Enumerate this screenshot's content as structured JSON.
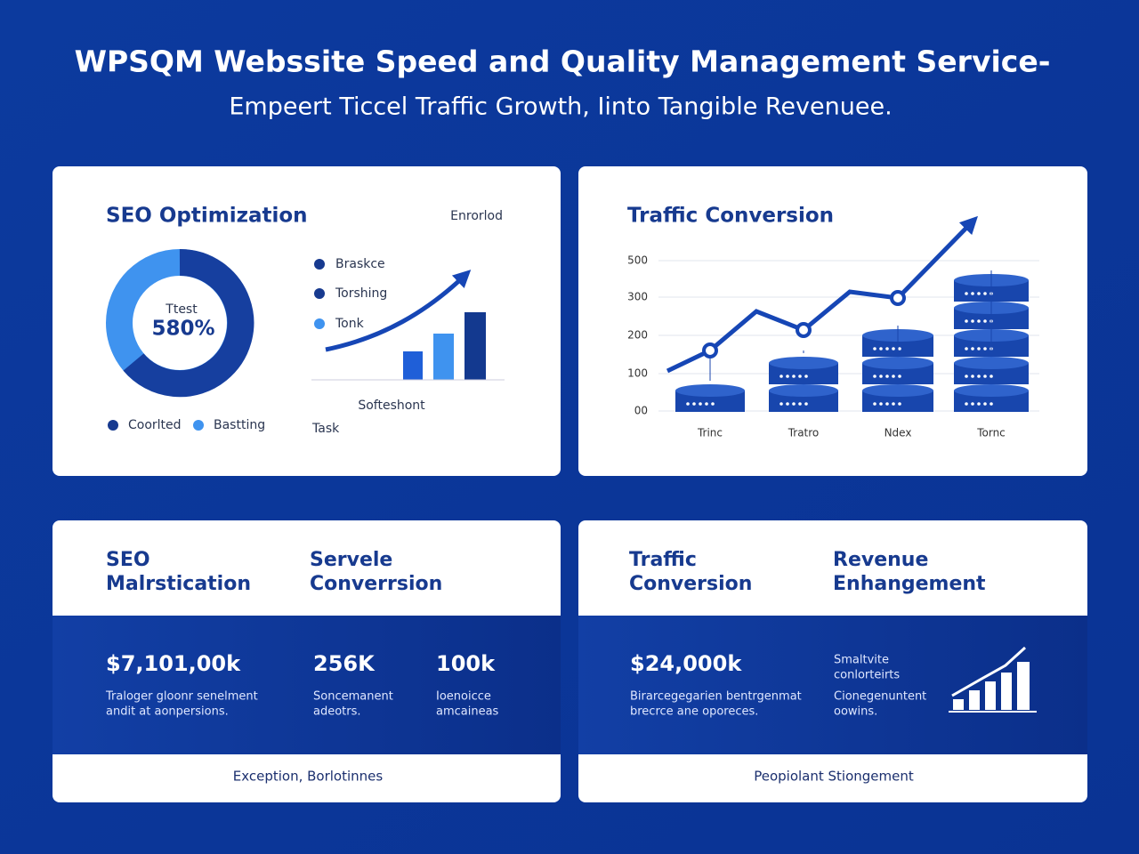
{
  "header": {
    "title": "WPSQM Webssite Speed and Quality Management Service-",
    "subtitle": "Empeert Ticcel Traffic Growth, Iinto Tangible Revenuee."
  },
  "seo_card": {
    "title": "SEO Optimization",
    "tag": "Enrorlod",
    "donut_label": "Ttest",
    "donut_value": "580%",
    "legend": [
      "Braskce",
      "Torshing",
      "Tonk"
    ],
    "chart_caption": "Softeshont",
    "axis_label": "Task",
    "bottom_legend": [
      "Coorlted",
      "Bastting"
    ]
  },
  "traffic_card": {
    "title": "Traffic Conversion",
    "yticks": [
      "500",
      "300",
      "200",
      "100",
      "00"
    ],
    "categories": [
      "Trinc",
      "Tratro",
      "Ndex",
      "Tornc"
    ]
  },
  "panels": [
    {
      "headings": [
        [
          "SEO",
          "Malrstication"
        ],
        [
          "Servele",
          "Converrsion"
        ]
      ],
      "stats": [
        {
          "value": "$7,101,00k",
          "desc": [
            "Traloger gloonr senelment",
            "andit at aonpersions."
          ]
        },
        {
          "value": "256K",
          "desc": [
            "Soncemanent",
            "adeotrs."
          ]
        },
        {
          "value": "100k",
          "desc": [
            "Ioenoicce",
            "amcaineas"
          ]
        }
      ],
      "footer": "Exception, Borlotinnes"
    },
    {
      "headings": [
        [
          "Traffic",
          "Conversion"
        ],
        [
          "Revenue",
          "Enhangement"
        ]
      ],
      "stats": [
        {
          "value": "$24,000k",
          "desc": [
            "Birarcegegarien bentrgenmat",
            "brecrce ane oporeces."
          ]
        }
      ],
      "notes": [
        [
          "Smaltvite",
          "conlorteirts"
        ],
        [
          "Cionegenuntent",
          "oowins."
        ]
      ],
      "footer": "Peopiolant Stiongement"
    }
  ]
}
